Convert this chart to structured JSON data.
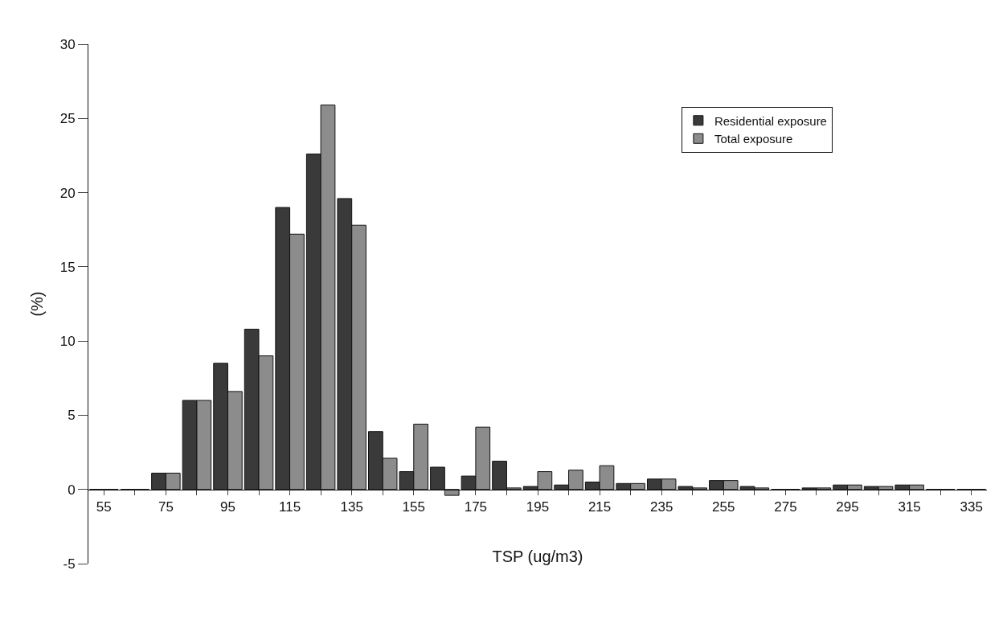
{
  "chart_data": {
    "type": "bar",
    "xlabel": "TSP (ug/m3)",
    "ylabel": "(%)",
    "categories": [
      "55",
      null,
      "75",
      null,
      "95",
      null,
      "115",
      null,
      "135",
      null,
      "155",
      null,
      "175",
      null,
      "195",
      null,
      "215",
      null,
      "235",
      null,
      "255",
      null,
      "275",
      null,
      "295",
      null,
      "315",
      null,
      "335"
    ],
    "series": [
      {
        "name": "Residential exposure",
        "color": "#3a3a3a",
        "values": [
          0,
          0,
          1.1,
          6.0,
          8.5,
          10.8,
          19.0,
          22.6,
          19.6,
          3.9,
          1.2,
          1.5,
          0.9,
          1.9,
          0.2,
          0.3,
          0.5,
          0.4,
          0.7,
          0.2,
          0.6,
          0.2,
          0,
          0.1,
          0.3,
          0.2,
          0.3,
          0,
          0
        ]
      },
      {
        "name": "Total exposure",
        "color": "#8c8c8c",
        "values": [
          0,
          0,
          1.1,
          6.0,
          6.6,
          9.0,
          17.2,
          25.9,
          17.8,
          2.1,
          4.4,
          -0.4,
          4.2,
          0.1,
          1.2,
          1.3,
          1.6,
          0.4,
          0.7,
          0.1,
          0.6,
          0.1,
          0,
          0.1,
          0.3,
          0.2,
          0.3,
          0,
          0
        ]
      }
    ],
    "ylim": [
      -5,
      30
    ],
    "yticks": [
      -5,
      0,
      5,
      10,
      15,
      20,
      25,
      30
    ],
    "legend": "top right"
  }
}
